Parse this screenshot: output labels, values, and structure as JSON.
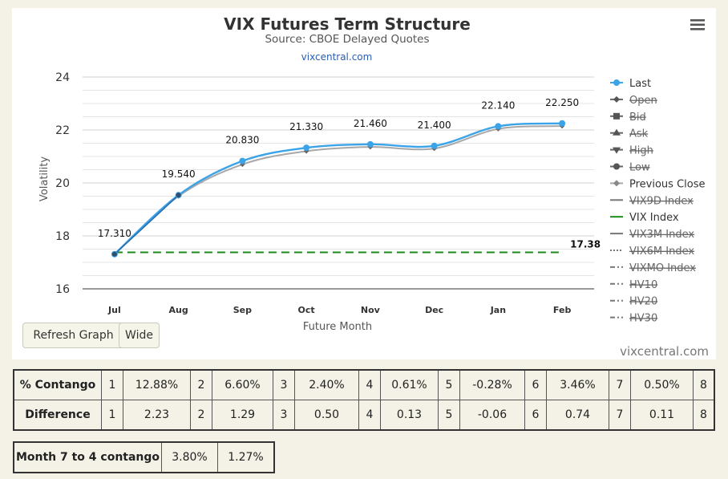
{
  "chart_data": {
    "type": "line",
    "title": "VIX Futures Term Structure",
    "subtitle": "Source: CBOE Delayed Quotes",
    "subtitle_link": "vixcentral.com",
    "xlabel": "Future Month",
    "ylabel": "Volatility",
    "categories": [
      "Jul",
      "Aug",
      "Sep",
      "Oct",
      "Nov",
      "Dec",
      "Jan",
      "Feb"
    ],
    "ylim": [
      16,
      24
    ],
    "yticks": [
      16,
      18,
      20,
      22,
      24
    ],
    "grid": true,
    "legend_position": "right",
    "series": [
      {
        "name": "Last",
        "values": [
          17.31,
          19.54,
          20.83,
          21.33,
          21.46,
          21.4,
          22.14,
          22.25
        ],
        "color": "#3ba3e8",
        "data_labels": [
          "17.310",
          "19.540",
          "20.830",
          "21.330",
          "21.460",
          "21.400",
          "22.140",
          "22.250"
        ]
      },
      {
        "name": "Previous Close",
        "values": [
          17.31,
          19.5,
          20.7,
          21.2,
          21.36,
          21.3,
          22.04,
          22.15
        ],
        "color": "#a8a8a8"
      },
      {
        "name": "VIX Index",
        "values": [
          17.38,
          17.38,
          17.38,
          17.38,
          17.38,
          17.38,
          17.38,
          17.38
        ],
        "color": "#1a8a1a",
        "end_label": "17.38"
      }
    ],
    "legend": [
      {
        "name": "Last",
        "symbol": "circle",
        "color": "#3ba3e8",
        "hidden": false
      },
      {
        "name": "Open",
        "symbol": "diamond",
        "color": "#555555",
        "hidden": true
      },
      {
        "name": "Bid",
        "symbol": "square",
        "color": "#555555",
        "hidden": true
      },
      {
        "name": "Ask",
        "symbol": "triangle",
        "color": "#555555",
        "hidden": true
      },
      {
        "name": "High",
        "symbol": "triangle-down",
        "color": "#555555",
        "hidden": true
      },
      {
        "name": "Low",
        "symbol": "circle",
        "color": "#555555",
        "hidden": true
      },
      {
        "name": "Previous Close",
        "symbol": "diamond",
        "color": "#a8a8a8",
        "hidden": false
      },
      {
        "name": "VIX9D Index",
        "symbol": "line",
        "color": "#777777",
        "hidden": true
      },
      {
        "name": "VIX Index",
        "symbol": "line",
        "color": "#1a8a1a",
        "hidden": false
      },
      {
        "name": "VIX3M Index",
        "symbol": "line",
        "color": "#777777",
        "hidden": true
      },
      {
        "name": "VIX6M Index",
        "symbol": "dot",
        "color": "#777777",
        "hidden": true
      },
      {
        "name": "VIXMO Index",
        "symbol": "dashdot",
        "color": "#777777",
        "hidden": true
      },
      {
        "name": "HV10",
        "symbol": "dashdot",
        "color": "#777777",
        "hidden": true
      },
      {
        "name": "HV20",
        "symbol": "dashdot",
        "color": "#777777",
        "hidden": true
      },
      {
        "name": "HV30",
        "symbol": "dashdot",
        "color": "#777777",
        "hidden": true
      }
    ],
    "credit": "vixcentral.com"
  },
  "buttons": {
    "refresh": "Refresh Graph",
    "wide": "Wide"
  },
  "contango_table": {
    "rows": [
      {
        "label": "% Contango",
        "cells": [
          "1",
          "12.88%",
          "2",
          "6.60%",
          "3",
          "2.40%",
          "4",
          "0.61%",
          "5",
          "-0.28%",
          "6",
          "3.46%",
          "7",
          "0.50%",
          "8"
        ]
      },
      {
        "label": "Difference",
        "cells": [
          "1",
          "2.23",
          "2",
          "1.29",
          "3",
          "0.50",
          "4",
          "0.13",
          "5",
          "-0.06",
          "6",
          "0.74",
          "7",
          "0.11",
          "8"
        ]
      }
    ]
  },
  "month74_table": {
    "label": "Month 7 to 4 contango",
    "values": [
      "3.80%",
      "1.27%"
    ]
  }
}
